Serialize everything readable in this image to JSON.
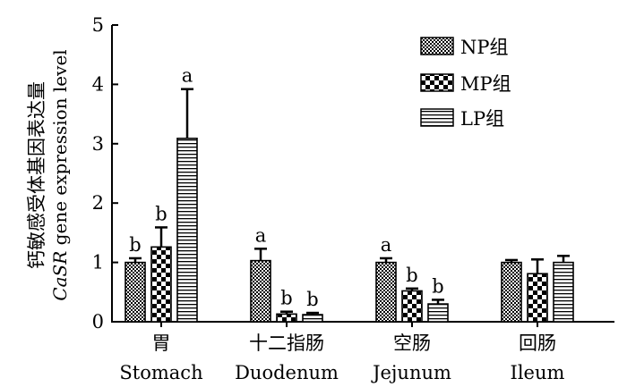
{
  "chart_data": {
    "type": "bar",
    "title": "",
    "ylabel_cn": "钙敏感受体基因表达量",
    "ylabel_en_italic": "CaSR",
    "ylabel_en_rest": " gene expression level",
    "ylim": [
      0,
      5
    ],
    "yticks": [
      "0",
      "1",
      "2",
      "3",
      "4",
      "5"
    ],
    "categories": [
      {
        "cn": "胃",
        "en": "Stomach"
      },
      {
        "cn": "十二指肠",
        "en": "Duodenum"
      },
      {
        "cn": "空肠",
        "en": "Jejunum"
      },
      {
        "cn": "回肠",
        "en": "Ileum"
      }
    ],
    "series": [
      {
        "name": "NP组",
        "pattern": "checker-fine",
        "values": [
          1.0,
          1.03,
          1.0,
          1.0
        ],
        "errors": [
          0.07,
          0.2,
          0.07,
          0.04
        ],
        "letters": [
          "b",
          "a",
          "a",
          ""
        ]
      },
      {
        "name": "MP组",
        "pattern": "checker-coarse",
        "values": [
          1.26,
          0.13,
          0.52,
          0.81
        ],
        "errors": [
          0.33,
          0.04,
          0.04,
          0.24
        ],
        "letters": [
          "b",
          "b",
          "b",
          ""
        ]
      },
      {
        "name": "LP组",
        "pattern": "hlines",
        "values": [
          3.09,
          0.12,
          0.3,
          1.0
        ],
        "errors": [
          0.83,
          0.03,
          0.07,
          0.11
        ],
        "letters": [
          "a",
          "b",
          "b",
          ""
        ]
      }
    ],
    "legend_position": "top-right",
    "grid": false
  }
}
